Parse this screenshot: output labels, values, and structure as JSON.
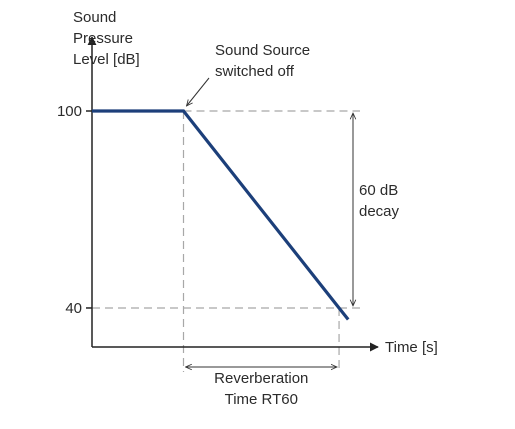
{
  "colors": {
    "series_line": "#1c3f7a",
    "axis": "#222222",
    "guide": "#a8a8a8",
    "text": "#2b2b2b"
  },
  "chart_data": {
    "type": "line",
    "title": "",
    "ylabel_lines": [
      "Sound",
      "Pressure",
      "Level [dB]"
    ],
    "xlabel": "Time [s]",
    "y_ticks": [
      {
        "value": 100,
        "label": "100"
      },
      {
        "value": 40,
        "label": "40"
      }
    ],
    "ylim": [
      20,
      130
    ],
    "xlim": [
      0,
      4.5
    ],
    "grid": false,
    "legend": "none",
    "series": [
      {
        "x": [
          0,
          1,
          2.7,
          2.8
        ],
        "y": [
          100,
          100,
          40,
          36.5
        ]
      }
    ],
    "annotations": {
      "source_off": {
        "lines": [
          "Sound Source",
          "switched off"
        ],
        "x": 1,
        "y": 100
      },
      "decay": {
        "lines": [
          "60 dB",
          "decay"
        ],
        "from": 100,
        "to": 40,
        "x": 2.9
      },
      "reverberation": {
        "lines": [
          "Reverberation",
          "Time RT60"
        ],
        "from": 1,
        "to": 2.7
      }
    }
  }
}
